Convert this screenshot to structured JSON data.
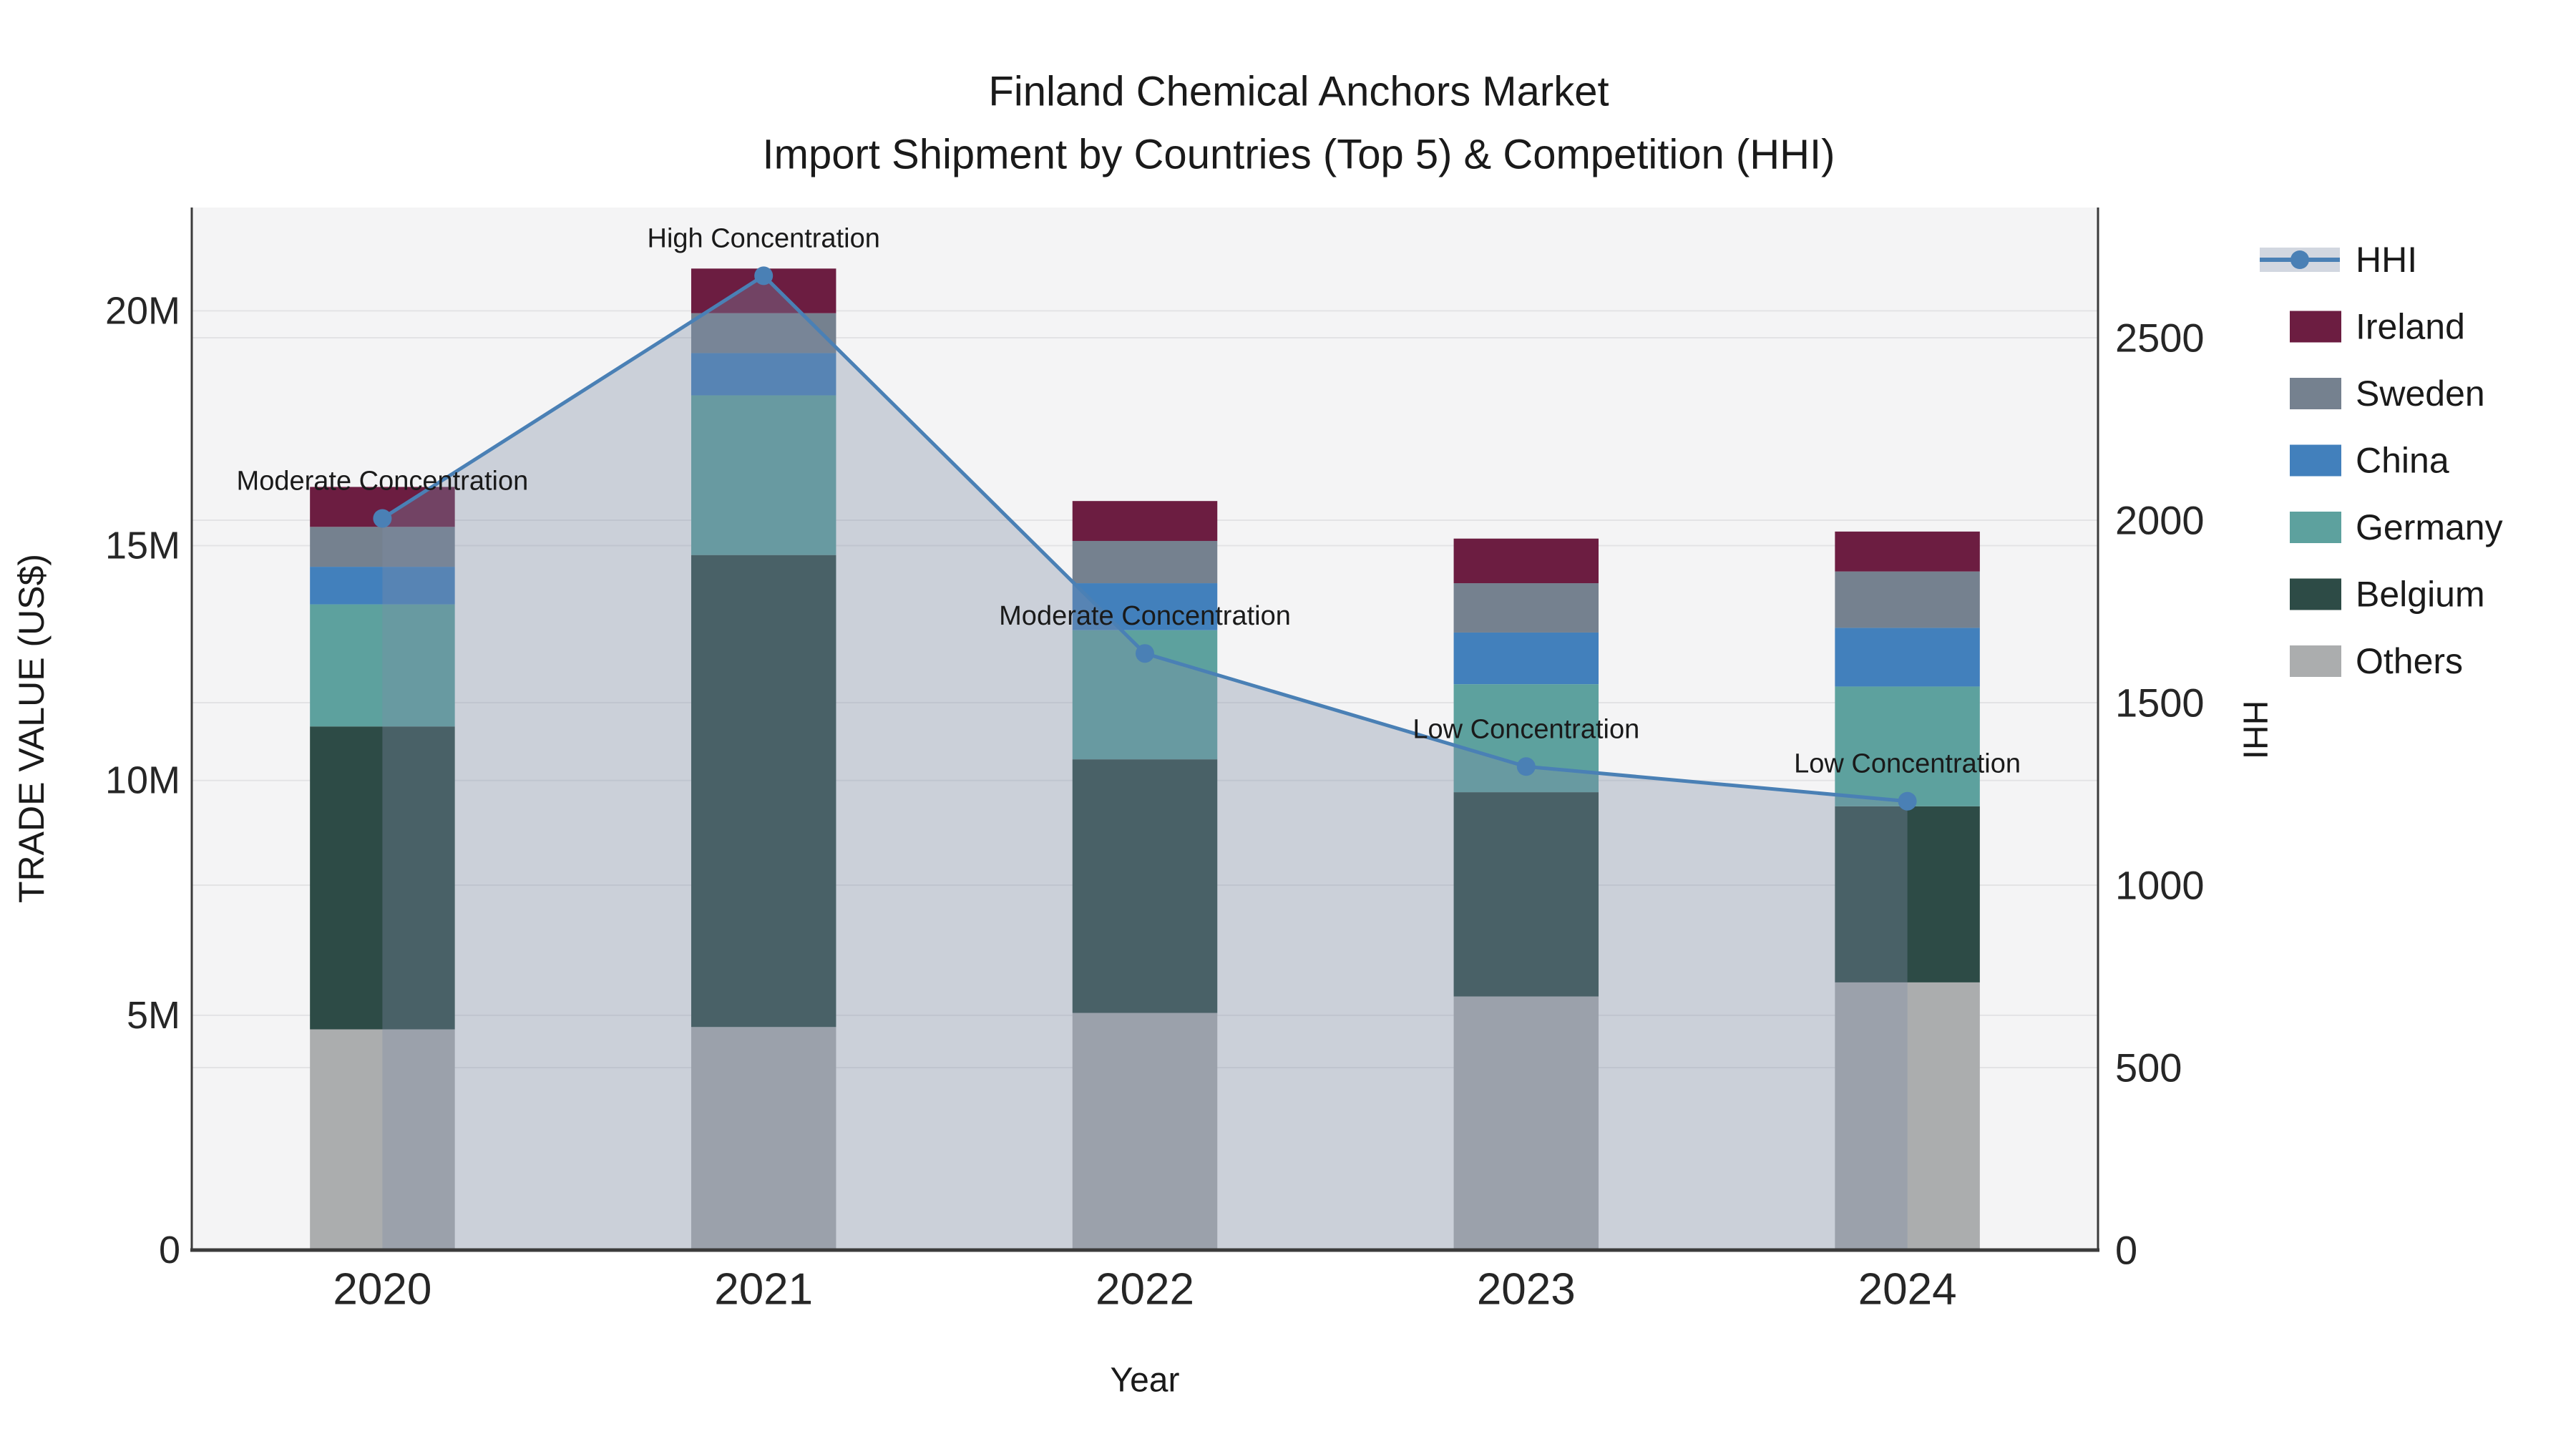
{
  "chart_data": {
    "type": "bar",
    "subtype": "stacked-bars-with-line-overlay-and-area",
    "title_line1": "Finland Chemical Anchors Market",
    "title_line2": "Import Shipment by Countries (Top 5) & Competition (HHI)",
    "x_label": "Year",
    "categories": [
      "2020",
      "2021",
      "2022",
      "2023",
      "2024"
    ],
    "value_unit": "M US$",
    "series": [
      {
        "name": "Others",
        "color": "#ABADAE",
        "values": [
          4.7,
          4.75,
          5.05,
          5.4,
          5.7
        ]
      },
      {
        "name": "Belgium",
        "color": "#2D4B46",
        "values": [
          6.45,
          10.05,
          5.4,
          4.35,
          3.75
        ]
      },
      {
        "name": "Germany",
        "color": "#5DA19E",
        "values": [
          2.6,
          3.4,
          2.75,
          2.3,
          2.55
        ]
      },
      {
        "name": "China",
        "color": "#4280BC",
        "values": [
          0.8,
          0.9,
          1.0,
          1.1,
          1.25
        ]
      },
      {
        "name": "Sweden",
        "color": "#75818F",
        "values": [
          0.85,
          0.85,
          0.9,
          1.05,
          1.2
        ]
      },
      {
        "name": "Ireland",
        "color": "#6C1D41",
        "values": [
          0.85,
          0.95,
          0.85,
          0.95,
          0.85
        ]
      }
    ],
    "stack_totals_musd": [
      16.25,
      20.9,
      15.95,
      15.15,
      15.3
    ],
    "line_series": {
      "name": "HHI",
      "values": [
        2005,
        2670,
        1635,
        1325,
        1230
      ],
      "color": "#4A80B5",
      "area_fill": "rgba(125,140,165,0.35)",
      "legend_band_fill": "rgba(125,140,165,0.35)"
    },
    "annotations": [
      "Moderate Concentration",
      "High Concentration",
      "Moderate Concentration",
      "Low Concentration",
      "Low Concentration"
    ],
    "y_left": {
      "label": "TRADE VALUE (US$)",
      "ticks": [
        "0",
        "5M",
        "10M",
        "15M",
        "20M"
      ],
      "tick_values": [
        0,
        5,
        10,
        15,
        20
      ],
      "max": 22.2
    },
    "y_right": {
      "label": "HHI",
      "ticks": [
        "0",
        "500",
        "1000",
        "1500",
        "2000",
        "2500"
      ],
      "tick_values": [
        0,
        500,
        1000,
        1500,
        2000,
        2500
      ],
      "max": 2857
    },
    "legend": {
      "entries": [
        "HHI",
        "Ireland",
        "Sweden",
        "China",
        "Germany",
        "Belgium",
        "Others"
      ]
    },
    "style": {
      "plot_bg": "#F4F4F5",
      "grid_color": "#E3E3E5",
      "spine_color": "#3B3B3B",
      "text_color": "#1A1A1A",
      "tick_text_color": "#262626"
    }
  }
}
